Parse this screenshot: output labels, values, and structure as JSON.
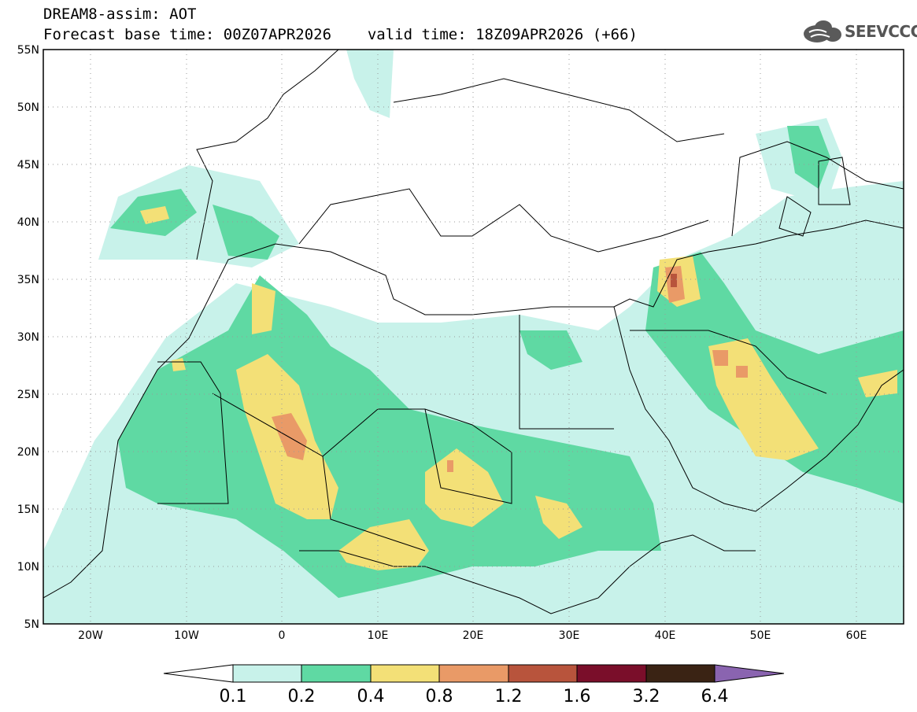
{
  "header": {
    "line1": "DREAM8-assim: AOT",
    "base_time_label": "Forecast base time: 00Z07APR2026",
    "valid_time_label": "valid time: 18Z09APR2026 (+66)"
  },
  "logo": {
    "text": "SEEVCCC",
    "icon": "cloud-logo-icon"
  },
  "map": {
    "lon_ticks": [
      "20W",
      "10W",
      "0",
      "10E",
      "20E",
      "30E",
      "40E",
      "50E",
      "60E"
    ],
    "lat_ticks": [
      "55N",
      "50N",
      "45N",
      "40N",
      "35N",
      "30N",
      "25N",
      "20N",
      "15N",
      "10N",
      "5N"
    ],
    "lon_range": [
      -25,
      65
    ],
    "lat_range": [
      5,
      55
    ]
  },
  "colorbar": {
    "labels": [
      "0.1",
      "0.2",
      "0.4",
      "0.8",
      "1.2",
      "1.6",
      "3.2",
      "6.4"
    ],
    "colors": [
      "#c8f2ea",
      "#5fd9a3",
      "#f3e077",
      "#e99a67",
      "#b8543c",
      "#7a0e2a",
      "#3a2314",
      "#8a64b0"
    ]
  }
}
